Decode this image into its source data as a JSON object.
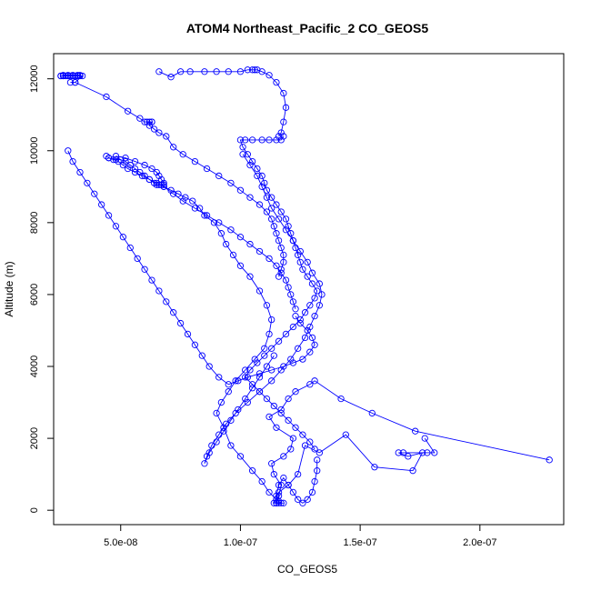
{
  "chart_data": {
    "type": "line",
    "title": "ATOM4 Northeast_Pacific_2 CO_GEOS5",
    "xlabel": "CO_GEOS5",
    "ylabel": "Altitude (m)",
    "xlim": [
      2.2e-08,
      2.35e-07
    ],
    "ylim": [
      -400,
      12700
    ],
    "x_ticks": [
      5e-08,
      1e-07,
      1.5e-07,
      2e-07
    ],
    "x_tick_labels": [
      "5.0e-08",
      "1.0e-07",
      "1.5e-07",
      "2.0e-07"
    ],
    "y_ticks": [
      0,
      2000,
      4000,
      6000,
      8000,
      10000,
      12000
    ],
    "y_tick_labels": [
      "0",
      "2000",
      "4000",
      "6000",
      "8000",
      "10000",
      "12000"
    ],
    "grid": false,
    "series_style": {
      "color": "#0000ff",
      "marker": "open-circle"
    },
    "series": [
      {
        "x": [
          1.15e-07,
          1.16e-07,
          1.17e-07,
          1.14e-07,
          1.13e-07,
          1.18e-07,
          1.21e-07,
          1.22e-07,
          1.15e-07,
          1.12e-07,
          1.17e-07,
          1.2e-07,
          1.23e-07,
          1.29e-07,
          1.31e-07,
          1.42e-07,
          1.55e-07,
          1.73e-07,
          2.29e-07
        ],
        "y": [
          200,
          400,
          700,
          1000,
          1300,
          1500,
          1700,
          2000,
          2300,
          2600,
          2800,
          3100,
          3300,
          3500,
          3600,
          3100,
          2700,
          2200,
          1400
        ]
      },
      {
        "x": [
          1.77e-07,
          1.81e-07,
          1.78e-07,
          1.68e-07,
          1.66e-07,
          1.7e-07,
          1.76e-07,
          1.72e-07,
          1.56e-07,
          1.44e-07,
          1.33e-07,
          1.27e-07,
          1.24e-07,
          1.2e-07,
          1.16e-07,
          1.14e-07,
          1.16e-07,
          1.18e-07,
          1.15e-07
        ],
        "y": [
          2000,
          1600,
          1600,
          1600,
          1600,
          1500,
          1600,
          1100,
          1200,
          2100,
          1600,
          1800,
          1000,
          700,
          500,
          200,
          200,
          200,
          200
        ]
      },
      {
        "x": [
          1.15e-07,
          1.12e-07,
          1.09e-07,
          1.05e-07,
          1e-07,
          9.6e-08,
          9.3e-08,
          9e-08,
          9.2e-08,
          9.5e-08,
          9.8e-08,
          1.02e-07,
          1.06e-07,
          1.1e-07,
          1.12e-07,
          1.13e-07,
          1.11e-07,
          1.08e-07,
          1.04e-07,
          1e-07,
          9.7e-08,
          9.4e-08,
          9.2e-08,
          8.9e-08,
          8.5e-08,
          8.3e-08,
          8e-08,
          7.7e-08,
          7.4e-08,
          7.1e-08,
          6.8e-08,
          6.5e-08,
          6.2e-08,
          5.9e-08,
          5.6e-08,
          5.3e-08,
          5.1e-08,
          4.9e-08,
          4.7e-08,
          4.5e-08,
          4.4e-08
        ],
        "y": [
          300,
          500,
          800,
          1100,
          1500,
          1800,
          2300,
          2700,
          3000,
          3300,
          3600,
          3900,
          4200,
          4500,
          4900,
          5300,
          5700,
          6100,
          6500,
          6800,
          7100,
          7400,
          7700,
          8000,
          8200,
          8400,
          8600,
          8700,
          8800,
          8900,
          9000,
          9100,
          9200,
          9300,
          9400,
          9500,
          9600,
          9700,
          9750,
          9800,
          9850
        ]
      },
      {
        "x": [
          4.5e-08,
          4.8e-08,
          5e-08,
          5.2e-08,
          5.4e-08,
          5.6e-08,
          5.8e-08,
          6e-08,
          6.2e-08,
          6.4e-08,
          6.5e-08,
          6.6e-08,
          6.7e-08,
          6.8e-08
        ],
        "y": [
          9800,
          9750,
          9750,
          9700,
          9600,
          9500,
          9400,
          9300,
          9200,
          9100,
          9050,
          9050,
          9050,
          9050
        ]
      },
      {
        "x": [
          6.8e-08,
          7.2e-08,
          7.6e-08,
          8.1e-08,
          8.6e-08,
          9.1e-08,
          9.6e-08,
          1e-07,
          1.04e-07,
          1.08e-07,
          1.12e-07,
          1.15e-07,
          1.17e-07,
          1.19e-07,
          1.2e-07,
          1.21e-07,
          1.22e-07,
          1.23e-07
        ],
        "y": [
          9000,
          8800,
          8600,
          8400,
          8200,
          8000,
          7800,
          7600,
          7400,
          7200,
          7000,
          6800,
          6600,
          6400,
          6200,
          6000,
          5800,
          5600
        ]
      },
      {
        "x": [
          1.23e-07,
          1.25e-07,
          1.28e-07,
          1.3e-07,
          1.31e-07,
          1.29e-07,
          1.26e-07,
          1.22e-07,
          1.18e-07,
          1.13e-07,
          1.08e-07,
          1.03e-07,
          9.9e-08,
          9.5e-08,
          9.1e-08,
          8.7e-08,
          8.4e-08,
          8.1e-08,
          7.8e-08,
          7.5e-08,
          7.2e-08,
          6.9e-08,
          6.6e-08,
          6.3e-08,
          6e-08,
          5.7e-08,
          5.4e-08,
          5.1e-08,
          4.8e-08,
          4.5e-08,
          4.2e-08,
          3.9e-08,
          3.6e-08,
          3.3e-08,
          3e-08,
          2.8e-08
        ],
        "y": [
          5400,
          5200,
          5000,
          4800,
          4600,
          4400,
          4200,
          4100,
          4000,
          3900,
          3800,
          3700,
          3600,
          3500,
          3700,
          4000,
          4300,
          4600,
          4900,
          5200,
          5500,
          5800,
          6100,
          6400,
          6700,
          7000,
          7300,
          7600,
          7900,
          8200,
          8500,
          8800,
          9100,
          9400,
          9700,
          10000
        ]
      },
      {
        "x": [
          4.8e-08,
          5.2e-08,
          5.6e-08,
          6e-08,
          6.3e-08,
          6.5e-08,
          6.6e-08,
          6.7e-08,
          6.8e-08
        ],
        "y": [
          9850,
          9800,
          9700,
          9600,
          9500,
          9400,
          9300,
          9200,
          9100
        ]
      },
      {
        "x": [
          2.6e-08,
          2.8e-08,
          3e-08,
          3.2e-08,
          3.3e-08,
          3.1e-08,
          2.9e-08,
          2.7e-08,
          2.6e-08,
          2.5e-08,
          2.5e-08,
          2.6e-08,
          2.8e-08,
          3e-08,
          3.2e-08,
          3.3e-08,
          3.4e-08,
          3.1e-08,
          2.9e-08
        ],
        "y": [
          12100,
          12100,
          12100,
          12100,
          12100,
          12080,
          12080,
          12080,
          12080,
          12080,
          12080,
          12080,
          12080,
          12080,
          12080,
          12080,
          12080,
          11900,
          11900
        ]
      },
      {
        "x": [
          3.1e-08,
          4.4e-08,
          5.3e-08,
          5.8e-08,
          6e-08,
          6.1e-08,
          6.2e-08,
          6.3e-08,
          6.3e-08,
          6.2e-08,
          6.4e-08,
          6.6e-08,
          6.9e-08,
          7.2e-08,
          7.6e-08,
          8.1e-08,
          8.6e-08,
          9.1e-08,
          9.6e-08,
          1e-07,
          1.04e-07,
          1.08e-07,
          1.11e-07,
          1.13e-07,
          1.14e-07,
          1.15e-07,
          1.16e-07,
          1.17e-07,
          1.18e-07,
          1.18e-07,
          1.17e-07,
          1.16e-07
        ],
        "y": [
          11900,
          11500,
          11100,
          10900,
          10800,
          10800,
          10800,
          10800,
          10800,
          10700,
          10600,
          10500,
          10400,
          10100,
          9900,
          9700,
          9500,
          9300,
          9100,
          8900,
          8700,
          8500,
          8300,
          8100,
          7900,
          7700,
          7500,
          7300,
          7100,
          6900,
          6700,
          6500
        ]
      },
      {
        "x": [
          6.6e-08,
          7.1e-08,
          7.5e-08,
          7.9e-08,
          8.5e-08,
          9e-08,
          9.5e-08,
          1e-07,
          1.03e-07,
          1.05e-07,
          1.06e-07,
          1.07e-07,
          1.09e-07,
          1.12e-07,
          1.15e-07,
          1.18e-07,
          1.19e-07,
          1.18e-07,
          1.17e-07,
          1.16e-07
        ],
        "y": [
          12200,
          12050,
          12200,
          12200,
          12200,
          12200,
          12200,
          12200,
          12250,
          12250,
          12250,
          12250,
          12200,
          12100,
          11900,
          11600,
          11200,
          10800,
          10500,
          10400
        ]
      },
      {
        "x": [
          1.18e-07,
          1.17e-07,
          1.15e-07,
          1.12e-07,
          1.09e-07,
          1.05e-07,
          1.02e-07,
          1e-07,
          1.01e-07,
          1.03e-07,
          1.05e-07,
          1.07e-07,
          1.09e-07,
          1.1e-07,
          1.11e-07,
          1.13e-07,
          1.15e-07,
          1.17e-07,
          1.19e-07,
          1.2e-07,
          1.21e-07,
          1.22e-07,
          1.23e-07,
          1.24e-07,
          1.25e-07,
          1.26e-07,
          1.28e-07,
          1.3e-07,
          1.32e-07,
          1.31e-07,
          1.29e-07,
          1.27e-07,
          1.25e-07,
          1.22e-07,
          1.19e-07,
          1.16e-07,
          1.13e-07,
          1.1e-07,
          1.07e-07,
          1.04e-07,
          1.02e-07,
          1.05e-07,
          1.08e-07,
          1.11e-07,
          1.14e-07,
          1.17e-07,
          1.2e-07,
          1.23e-07,
          1.26e-07,
          1.29e-07,
          1.31e-07
        ],
        "y": [
          10400,
          10300,
          10300,
          10300,
          10300,
          10300,
          10300,
          10300,
          10100,
          9900,
          9700,
          9500,
          9300,
          9100,
          8900,
          8700,
          8500,
          8300,
          8100,
          7900,
          7700,
          7500,
          7300,
          7100,
          6900,
          6700,
          6500,
          6300,
          6100,
          5900,
          5700,
          5500,
          5300,
          5100,
          4900,
          4700,
          4500,
          4300,
          4100,
          3900,
          3700,
          3500,
          3300,
          3100,
          2900,
          2700,
          2500,
          2300,
          2100,
          1900,
          1700
        ]
      },
      {
        "x": [
          1.32e-07,
          1.32e-07,
          1.31e-07,
          1.3e-07,
          1.28e-07,
          1.26e-07,
          1.24e-07,
          1.22e-07,
          1.2e-07,
          1.18e-07,
          1.16e-07,
          1.15e-07,
          1.16e-07,
          1.17e-07
        ],
        "y": [
          1400,
          1100,
          800,
          500,
          300,
          200,
          300,
          500,
          700,
          900,
          700,
          400,
          250,
          200
        ]
      },
      {
        "x": [
          1.01e-07,
          1.04e-07,
          1.07e-07,
          1.09e-07,
          1.11e-07,
          1.13e-07,
          1.16e-07,
          1.19e-07,
          1.22e-07,
          1.25e-07,
          1.28e-07,
          1.3e-07,
          1.33e-07,
          1.34e-07,
          1.33e-07,
          1.31e-07,
          1.29e-07,
          1.27e-07,
          1.24e-07,
          1.21e-07,
          1.17e-07,
          1.13e-07,
          1.08e-07,
          1.03e-07,
          9.8e-08,
          9.4e-08,
          9.1e-08,
          8.8e-08,
          8.6e-08,
          8.5e-08,
          8.7e-08,
          9e-08,
          9.3e-08,
          9.6e-08,
          9.9e-08,
          1.02e-07,
          1.05e-07,
          1.08e-07,
          1.11e-07,
          1.14e-07
        ],
        "y": [
          9900,
          9600,
          9300,
          9000,
          8700,
          8400,
          8100,
          7800,
          7500,
          7200,
          6900,
          6600,
          6300,
          6000,
          5700,
          5400,
          5100,
          4800,
          4500,
          4200,
          3900,
          3600,
          3300,
          3000,
          2700,
          2400,
          2100,
          1800,
          1500,
          1300,
          1600,
          1900,
          2200,
          2500,
          2800,
          3100,
          3400,
          3700,
          4000,
          4300
        ]
      }
    ]
  }
}
